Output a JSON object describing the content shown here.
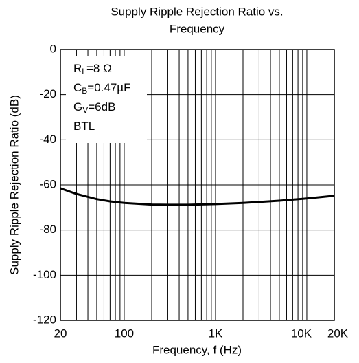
{
  "chart_data": {
    "type": "line",
    "title": [
      "Supply Ripple Rejection Ratio vs.",
      "Frequency"
    ],
    "xlabel": "Frequency, f (Hz)",
    "ylabel": "Supply Ripple Rejection Ratio (dB)",
    "xscale": "log",
    "xlim": [
      20,
      20000
    ],
    "ylim": [
      -120,
      0
    ],
    "xticks": [
      20,
      100,
      {
        "value": 1000,
        "label": "1K"
      },
      {
        "value": 10000,
        "label": "10K"
      },
      {
        "value": 20000,
        "label": "20K"
      }
    ],
    "yticks": [
      0,
      -20,
      -40,
      -60,
      -80,
      -100,
      -120
    ],
    "xgrid": [
      30,
      40,
      50,
      60,
      70,
      80,
      90,
      200,
      300,
      400,
      500,
      600,
      700,
      800,
      900,
      2000,
      3000,
      4000,
      5000,
      6000,
      7000,
      8000,
      9000
    ],
    "grid": true,
    "annotations": [
      {
        "main": "R",
        "sub": "L",
        "rest": "=8 Ω"
      },
      {
        "main": "C",
        "sub": "B",
        "rest": "=0.47µF"
      },
      {
        "main": "G",
        "sub": "V",
        "rest": "=6dB"
      },
      {
        "main": "BTL"
      }
    ],
    "series": [
      {
        "color": "#000000",
        "x": [
          20,
          30,
          50,
          70,
          100,
          200,
          300,
          500,
          1000,
          2000,
          5000,
          10000,
          20000
        ],
        "values": [
          -61.5,
          -64,
          -66.3,
          -67.3,
          -68,
          -68.7,
          -68.8,
          -68.8,
          -68.5,
          -68,
          -67,
          -66,
          -64.8
        ]
      }
    ]
  }
}
